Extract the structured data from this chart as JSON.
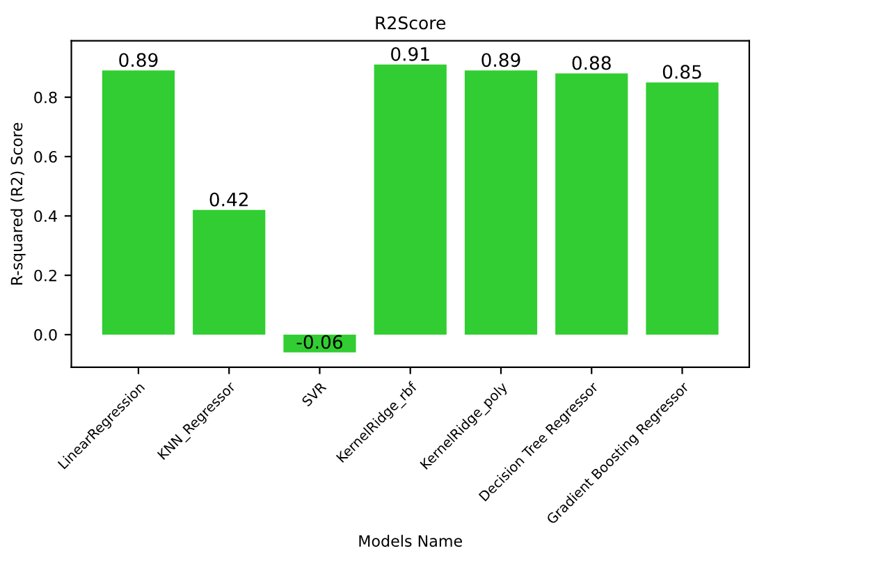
{
  "chart_data": {
    "type": "bar",
    "title": "R2Score",
    "xlabel": "Models Name",
    "ylabel": "R-squared (R2) Score",
    "categories": [
      "LinearRegression",
      "KNN_Regressor",
      "SVR",
      "KernelRidge_rbf",
      "KernelRidge_poly",
      "Decision Tree Regressor",
      "Gradient Boosting Regressor"
    ],
    "values": [
      0.89,
      0.42,
      -0.06,
      0.91,
      0.89,
      0.88,
      0.85
    ],
    "color": "#32cd32",
    "ylim": [
      -0.11,
      0.99
    ],
    "yticks": [
      {
        "value": 0,
        "label": "0.0"
      },
      0.2,
      0.4,
      0.6,
      0.8
    ],
    "data_labels": true,
    "grid": false
  }
}
